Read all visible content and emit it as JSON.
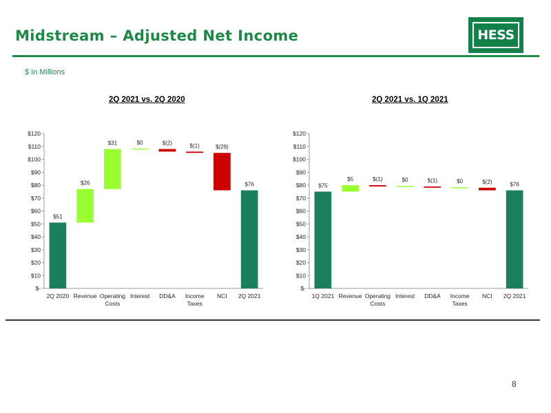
{
  "header": {
    "title": "Midstream – Adjusted Net Income",
    "logo_text": "HESS",
    "units": "$ In Millions"
  },
  "colors": {
    "brand_green": "#1a8a45",
    "total_bar": "#1a7f5a",
    "increase": "#99ff33",
    "decrease": "#cc0000"
  },
  "page_number": "8",
  "chart_data": [
    {
      "type": "bar",
      "variant": "waterfall",
      "title": "2Q 2021 vs. 2Q 2020",
      "categories": [
        "2Q 2020",
        "Revenue",
        "Operating Costs",
        "Interest",
        "DD&A",
        "Income Taxes",
        "NCI",
        "2Q 2021"
      ],
      "values": [
        51,
        26,
        31,
        0,
        -2,
        -1,
        -29,
        76
      ],
      "kinds": [
        "total",
        "change",
        "change",
        "change",
        "change",
        "change",
        "change",
        "total"
      ],
      "data_labels": [
        "$51",
        "$26",
        "$31",
        "$0",
        "$(2)",
        "$(1)",
        "$(29)",
        "$76"
      ],
      "y_ticks": [
        "$-",
        "$10",
        "$20",
        "$30",
        "$40",
        "$50",
        "$60",
        "$70",
        "$80",
        "$90",
        "$100",
        "$110",
        "$120"
      ],
      "ylim": [
        0,
        120
      ],
      "xlabel": "",
      "ylabel": ""
    },
    {
      "type": "bar",
      "variant": "waterfall",
      "title": "2Q 2021 vs. 1Q 2021",
      "categories": [
        "1Q 2021",
        "Revenue",
        "Operating Costs",
        "Interest",
        "DD&A",
        "Income Taxes",
        "NCI",
        "2Q 2021"
      ],
      "values": [
        75,
        5,
        -1,
        0,
        -1,
        0,
        -2,
        76
      ],
      "kinds": [
        "total",
        "change",
        "change",
        "change",
        "change",
        "change",
        "change",
        "total"
      ],
      "data_labels": [
        "$75",
        "$5",
        "$(1)",
        "$0",
        "$(1)",
        "$0",
        "$(2)",
        "$76"
      ],
      "y_ticks": [
        "$-",
        "$10",
        "$20",
        "$30",
        "$40",
        "$50",
        "$60",
        "$70",
        "$80",
        "$90",
        "$100",
        "$110",
        "$120"
      ],
      "ylim": [
        0,
        120
      ],
      "xlabel": "",
      "ylabel": ""
    }
  ]
}
